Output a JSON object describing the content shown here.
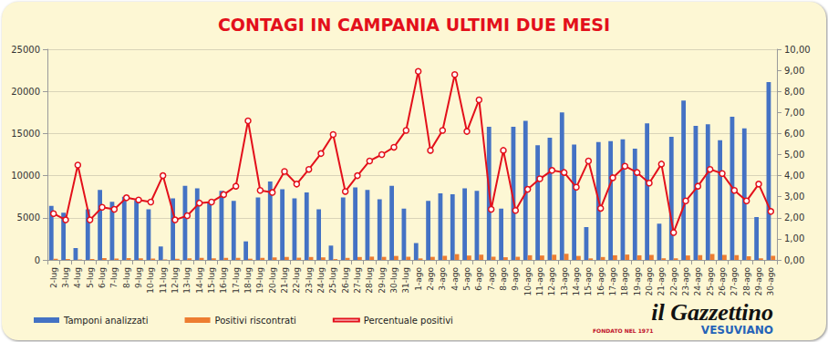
{
  "chart_data": {
    "type": "bar",
    "title": "CONTAGI IN CAMPANIA ULTIMI DUE MESI",
    "annotations": [
      "il Gazzettino",
      "FONDATO NEL 1971",
      "VESUVIANO"
    ],
    "categories": [
      "2-lug",
      "3-lug",
      "4-lug",
      "5-lug",
      "6-lug",
      "7-lug",
      "8-lug",
      "9-lug",
      "10-lug",
      "11-lug",
      "12-lug",
      "13-lug",
      "14-lug",
      "15-lug",
      "16-lug",
      "17-lug",
      "18-lug",
      "19-lug",
      "20-lug",
      "21-lug",
      "22-lug",
      "23-lug",
      "24-lug",
      "25-lug",
      "26-lug",
      "27-lug",
      "28-lug",
      "29-lug",
      "30-lug",
      "31-lug",
      "1-ago",
      "2-ago",
      "3-ago",
      "4-ago",
      "5-ago",
      "6-ago",
      "7-ago",
      "8-ago",
      "9-ago",
      "10-ago",
      "11-ago",
      "12-ago",
      "13-ago",
      "14-ago",
      "15-ago",
      "16-ago",
      "17-ago",
      "18-ago",
      "19-ago",
      "20-ago",
      "21-ago",
      "22-ago",
      "23-ago",
      "24-ago",
      "25-ago",
      "26-ago",
      "27-ago",
      "28-ago",
      "29-ago",
      "30-ago"
    ],
    "series": [
      {
        "name": "Tamponi analizzati",
        "type": "bar",
        "color": "#4472c4",
        "values": [
          6400,
          5600,
          1400,
          6000,
          8300,
          6900,
          7500,
          7100,
          6000,
          1600,
          7300,
          8800,
          8500,
          6900,
          8200,
          7000,
          2200,
          7400,
          9300,
          8400,
          7300,
          8000,
          6000,
          1700,
          7400,
          8600,
          8300,
          7200,
          8800,
          6100,
          2000,
          7000,
          7900,
          7800,
          8500,
          8200,
          15800,
          6100,
          15800,
          16500,
          13600,
          14500,
          17500,
          13700,
          3900,
          14000,
          14100,
          14300,
          13200,
          16200,
          4300,
          14600,
          18900,
          15900,
          16100,
          14200,
          17000,
          15600,
          5100,
          21100
        ]
      },
      {
        "name": "Positivi riscontrati",
        "type": "bar",
        "color": "#ed7d31",
        "values": [
          141,
          106,
          63,
          114,
          208,
          166,
          221,
          202,
          165,
          64,
          139,
          185,
          230,
          190,
          254,
          245,
          145,
          244,
          298,
          353,
          263,
          344,
          303,
          101,
          241,
          344,
          390,
          360,
          471,
          375,
          179,
          364,
          486,
          686,
          519,
          623,
          379,
          317,
          371,
          553,
          524,
          616,
          726,
          473,
          183,
          343,
          550,
          636,
          548,
          591,
          196,
          190,
          529,
          557,
          692,
          582,
          561,
          437,
          184,
          485
        ]
      },
      {
        "name": "Percentuale positivi",
        "type": "line",
        "axis": "y2",
        "color": "#e3101b",
        "marker": "circle",
        "values": [
          2.2,
          1.9,
          4.5,
          1.9,
          2.5,
          2.4,
          2.95,
          2.85,
          2.75,
          4.0,
          1.9,
          2.1,
          2.7,
          2.75,
          3.1,
          3.5,
          6.6,
          3.3,
          3.2,
          4.2,
          3.6,
          4.3,
          5.05,
          5.95,
          3.25,
          4.0,
          4.7,
          5.0,
          5.35,
          6.15,
          8.95,
          5.2,
          6.15,
          8.8,
          6.1,
          7.6,
          2.4,
          5.2,
          2.35,
          3.35,
          3.85,
          4.25,
          4.15,
          3.45,
          4.7,
          2.45,
          3.9,
          4.45,
          4.15,
          3.65,
          4.55,
          1.3,
          2.8,
          3.5,
          4.3,
          4.1,
          3.3,
          2.8,
          3.6,
          2.3
        ]
      }
    ],
    "ylim": [
      0,
      25000
    ],
    "yticks": [
      0,
      5000,
      10000,
      15000,
      20000,
      25000
    ],
    "y2lim": [
      0,
      10
    ],
    "y2ticks": [
      {
        "value": 0,
        "label": "0,00"
      },
      {
        "value": 1,
        "label": "1,00"
      },
      {
        "value": 2,
        "label": "2,00"
      },
      {
        "value": 3,
        "label": "3,00"
      },
      {
        "value": 4,
        "label": "4,00"
      },
      {
        "value": 5,
        "label": "5,00"
      },
      {
        "value": 6,
        "label": "6,00"
      },
      {
        "value": 7,
        "label": "7,00"
      },
      {
        "value": 8,
        "label": "8,00"
      },
      {
        "value": 9,
        "label": "9,00"
      },
      {
        "value": 10,
        "label": "10,00"
      }
    ],
    "grid": true,
    "legend": "bottom-left"
  }
}
